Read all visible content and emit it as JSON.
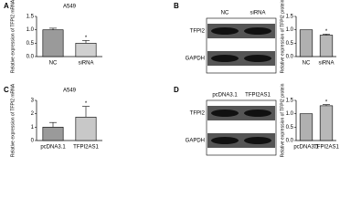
{
  "panel_labels": [
    "A",
    "B",
    "C",
    "D"
  ],
  "blots": [
    {
      "lanes": [
        "NC",
        "siRNA"
      ],
      "bands": [
        "TFPI2",
        "GAPDH"
      ]
    },
    {
      "lanes": [
        "pcDNA3.1",
        "TFPI2AS1"
      ],
      "bands": [
        "TFPI2",
        "GAPDH"
      ]
    }
  ],
  "chart_data": [
    {
      "type": "bar",
      "title": "A549",
      "y_label": "Relative expression of TFPI2 mRNA",
      "categories": [
        "NC",
        "siRNA"
      ],
      "values": [
        1.0,
        0.5
      ],
      "errors": [
        0.06,
        0.1
      ],
      "significance": [
        null,
        "*"
      ],
      "colors": [
        "#9a9a9a",
        "#d0d0d0"
      ],
      "ylim": [
        0,
        1.5
      ],
      "yticks": [
        {
          "value": 0,
          "label": "0.0"
        },
        {
          "value": 0.5,
          "label": "0.5"
        },
        {
          "value": 1,
          "label": "1.0"
        },
        {
          "value": 1.5,
          "label": "1.5"
        }
      ]
    },
    {
      "type": "bar",
      "y_label": "Relative expression of TFPI2 protein",
      "categories": [
        "NC",
        "siRNA"
      ],
      "values": [
        1.0,
        0.8
      ],
      "errors": [
        0,
        0.04
      ],
      "significance": [
        null,
        "*"
      ],
      "colors": [
        "#b0b0b0",
        "#b8b8b8"
      ],
      "ylim": [
        0,
        1.5
      ],
      "yticks": [
        {
          "value": 0,
          "label": "0.0"
        },
        {
          "value": 0.5,
          "label": "0.5"
        },
        {
          "value": 1,
          "label": "1.0"
        },
        {
          "value": 1.5,
          "label": "1.5"
        }
      ]
    },
    {
      "type": "bar",
      "title": "A549",
      "y_label": "Relative expression of TFPI2 mRNA",
      "categories": [
        "pcDNA3.1",
        "TFPI2AS1"
      ],
      "values": [
        1.0,
        1.75
      ],
      "errors": [
        0.35,
        0.8
      ],
      "significance": [
        null,
        "*"
      ],
      "colors": [
        "#9a9a9a",
        "#c8c8c8"
      ],
      "ylim": [
        0,
        3
      ],
      "yticks": [
        0,
        1,
        2,
        3
      ]
    },
    {
      "type": "bar",
      "y_label": "Relative expression of TFPI2 protein",
      "categories": [
        "pcDNA3.1",
        "TFPI2AS1"
      ],
      "values": [
        1.0,
        1.3
      ],
      "errors": [
        0,
        0.04
      ],
      "significance": [
        null,
        "*"
      ],
      "colors": [
        "#b0b0b0",
        "#b8b8b8"
      ],
      "ylim": [
        0,
        1.5
      ],
      "yticks": [
        {
          "value": 0,
          "label": "0.0"
        },
        {
          "value": 0.5,
          "label": "0.5"
        },
        {
          "value": 1,
          "label": "1.0"
        },
        {
          "value": 1.5,
          "label": "1.5"
        }
      ]
    }
  ]
}
